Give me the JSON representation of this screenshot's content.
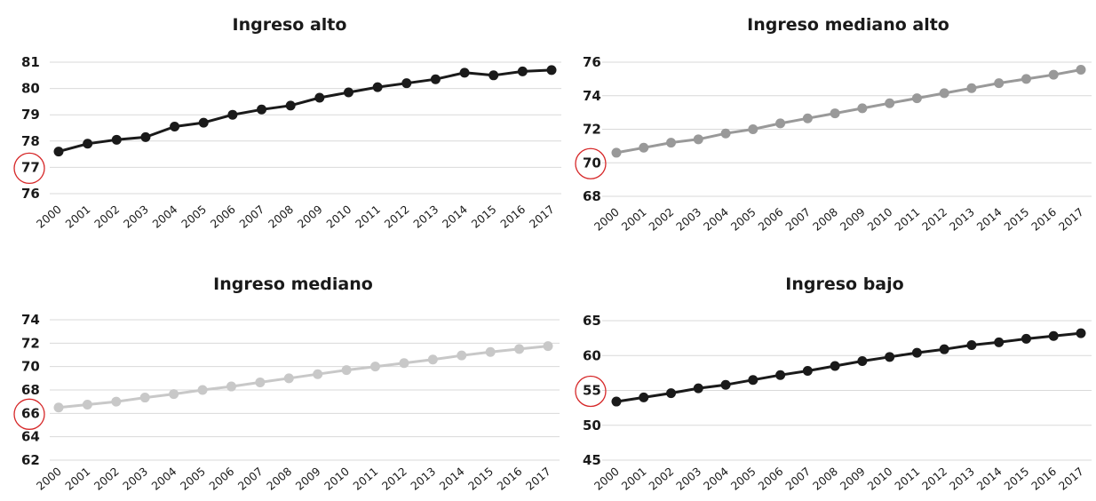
{
  "chart_data": [
    {
      "type": "line",
      "title": "Ingreso alto",
      "x": [
        "2000",
        "2001",
        "2002",
        "2003",
        "2004",
        "2005",
        "2006",
        "2007",
        "2008",
        "2009",
        "2010",
        "2011",
        "2012",
        "2013",
        "2014",
        "2015",
        "2016",
        "2017"
      ],
      "series": [
        {
          "values": [
            77.6,
            77.9,
            78.05,
            78.15,
            78.55,
            78.7,
            79.0,
            79.2,
            79.35,
            79.65,
            79.85,
            80.05,
            80.2,
            80.35,
            80.6,
            80.5,
            80.65,
            80.7
          ]
        }
      ],
      "yticks": [
        76,
        77,
        78,
        79,
        80,
        81
      ],
      "ylim": [
        76,
        81
      ],
      "highlight_tick": 77,
      "color": "#1a1a1a",
      "grid": true
    },
    {
      "type": "line",
      "title": "Ingreso mediano alto",
      "x": [
        "2000",
        "2001",
        "2002",
        "2003",
        "2004",
        "2005",
        "2006",
        "2007",
        "2008",
        "2009",
        "2010",
        "2011",
        "2012",
        "2013",
        "2014",
        "2015",
        "2016",
        "2017"
      ],
      "series": [
        {
          "values": [
            70.6,
            70.9,
            71.2,
            71.4,
            71.75,
            72.0,
            72.35,
            72.65,
            72.95,
            73.25,
            73.55,
            73.85,
            74.15,
            74.45,
            74.75,
            75.0,
            75.25,
            75.55
          ]
        }
      ],
      "yticks": [
        68,
        70,
        72,
        74,
        76
      ],
      "ylim": [
        68,
        76
      ],
      "highlight_tick": 70,
      "color": "#999999",
      "grid": true
    },
    {
      "type": "line",
      "title": "Ingreso mediano",
      "x": [
        "2000",
        "2001",
        "2002",
        "2003",
        "2004",
        "2005",
        "2006",
        "2007",
        "2008",
        "2009",
        "2010",
        "2011",
        "2012",
        "2013",
        "2014",
        "2015",
        "2016",
        "2017"
      ],
      "series": [
        {
          "values": [
            66.5,
            66.75,
            67.0,
            67.35,
            67.65,
            68.0,
            68.3,
            68.65,
            69.0,
            69.35,
            69.7,
            70.0,
            70.3,
            70.6,
            70.95,
            71.25,
            71.5,
            71.75
          ]
        }
      ],
      "yticks": [
        62,
        64,
        66,
        68,
        70,
        72,
        74
      ],
      "ylim": [
        62,
        74
      ],
      "highlight_tick": 66,
      "color": "#c8c8c8",
      "grid": true
    },
    {
      "type": "line",
      "title": "Ingreso bajo",
      "x": [
        "2000",
        "2001",
        "2002",
        "2003",
        "2004",
        "2005",
        "2006",
        "2007",
        "2008",
        "2009",
        "2010",
        "2011",
        "2012",
        "2013",
        "2014",
        "2015",
        "2016",
        "2017"
      ],
      "series": [
        {
          "values": [
            53.4,
            54.0,
            54.6,
            55.3,
            55.8,
            56.5,
            57.2,
            57.8,
            58.5,
            59.2,
            59.8,
            60.4,
            60.9,
            61.5,
            61.9,
            62.4,
            62.8,
            63.2
          ]
        }
      ],
      "yticks": [
        45,
        50,
        55,
        60,
        65
      ],
      "ylim": [
        45,
        65
      ],
      "highlight_tick": 55,
      "color": "#1a1a1a",
      "grid": true
    }
  ],
  "highlight_color": "#d62728"
}
